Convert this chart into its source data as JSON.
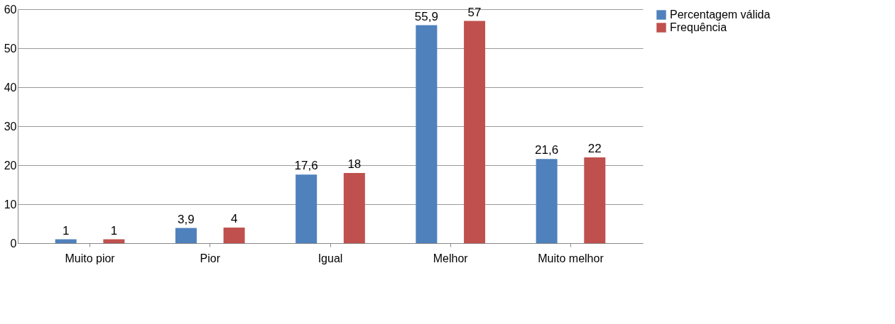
{
  "chart_data": {
    "type": "bar",
    "categories": [
      "Muito pior",
      "Pior",
      "Igual",
      "Melhor",
      "Muito melhor"
    ],
    "series": [
      {
        "name": "Percentagem válida",
        "color": "#4f81bd",
        "values": [
          1,
          3.9,
          17.6,
          55.9,
          21.6
        ],
        "value_labels": [
          "1",
          "3,9",
          "17,6",
          "55,9",
          "21,6"
        ]
      },
      {
        "name": "Frequência",
        "color": "#c0504d",
        "values": [
          1,
          4,
          18,
          57,
          22
        ],
        "value_labels": [
          "1",
          "4",
          "18",
          "57",
          "22"
        ]
      }
    ],
    "ylim": [
      0,
      60
    ],
    "yticks": [
      0,
      10,
      20,
      30,
      40,
      50,
      60
    ],
    "grid": "y",
    "legend": "right"
  }
}
